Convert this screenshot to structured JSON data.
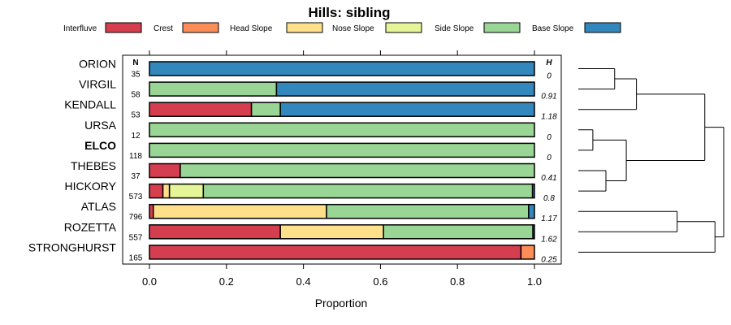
{
  "chart_data": {
    "type": "bar",
    "subtype": "stacked-horizontal-proportion",
    "title": "Hills: sibling",
    "xlabel": "Proportion",
    "xlim": [
      0,
      1
    ],
    "xticks": [
      "0.0",
      "0.2",
      "0.4",
      "0.6",
      "0.8",
      "1.0"
    ],
    "column_headers": {
      "n": "N",
      "h": "H"
    },
    "legend": [
      {
        "name": "Interfluve",
        "color": "#d53e4f"
      },
      {
        "name": "Crest",
        "color": "#fc8d59"
      },
      {
        "name": "Head Slope",
        "color": "#fee08b"
      },
      {
        "name": "Nose Slope",
        "color": "#e6f598"
      },
      {
        "name": "Side Slope",
        "color": "#99d594"
      },
      {
        "name": "Base Slope",
        "color": "#3288bd"
      }
    ],
    "rows": [
      {
        "name": "ORION",
        "bold": false,
        "n": "35",
        "h": "0",
        "values": [
          0,
          0,
          0,
          0,
          0,
          1.0
        ]
      },
      {
        "name": "VIRGIL",
        "bold": false,
        "n": "58",
        "h": "0.91",
        "values": [
          0,
          0,
          0,
          0,
          0.33,
          0.67
        ]
      },
      {
        "name": "KENDALL",
        "bold": false,
        "n": "53",
        "h": "1.18",
        "values": [
          0.265,
          0,
          0,
          0,
          0.075,
          0.66
        ]
      },
      {
        "name": "URSA",
        "bold": false,
        "n": "12",
        "h": "0",
        "values": [
          0,
          0,
          0,
          0,
          1.0,
          0
        ]
      },
      {
        "name": "ELCO",
        "bold": true,
        "n": "118",
        "h": "0",
        "values": [
          0,
          0,
          0,
          0,
          1.0,
          0
        ]
      },
      {
        "name": "THEBES",
        "bold": false,
        "n": "37",
        "h": "0.41",
        "values": [
          0.08,
          0,
          0,
          0,
          0.92,
          0
        ]
      },
      {
        "name": "HICKORY",
        "bold": false,
        "n": "573",
        "h": "0.8",
        "values": [
          0.035,
          0,
          0.017,
          0.088,
          0.855,
          0.005
        ]
      },
      {
        "name": "ATLAS",
        "bold": false,
        "n": "796",
        "h": "1.17",
        "values": [
          0.01,
          0,
          0.45,
          0,
          0.525,
          0.015
        ]
      },
      {
        "name": "ROZETTA",
        "bold": false,
        "n": "557",
        "h": "1.62",
        "values": [
          0.34,
          0,
          0.268,
          0,
          0.388,
          0.004
        ]
      },
      {
        "name": "STRONGHURST",
        "bold": false,
        "n": "165",
        "h": "0.25",
        "values": [
          0.965,
          0.035,
          0,
          0,
          0,
          0
        ]
      }
    ],
    "dendrogram": {
      "leaves": [
        "ORION",
        "VIRGIL",
        "KENDALL",
        "URSA",
        "ELCO",
        "THEBES",
        "HICKORY",
        "ATLAS",
        "ROZETTA",
        "STRONGHURST"
      ],
      "merges": [
        {
          "a": "URSA",
          "b": "ELCO",
          "height": 0.1
        },
        {
          "a": "ORION",
          "b": "VIRGIL",
          "height": 0.25
        },
        {
          "a": "THEBES",
          "b": "HICKORY",
          "height": 0.19
        },
        {
          "a": "URSA+ELCO",
          "b": "THEBES+HICKORY",
          "height": 0.33
        },
        {
          "a": "ORION+VIRGIL",
          "b": "KENDALL",
          "height": 0.4
        },
        {
          "a": "ATLAS",
          "b": "ROZETTA",
          "height": 0.68
        },
        {
          "a": "ORION+VIRGIL+KENDALL",
          "b": "URSA+ELCO+THEBES+HICKORY",
          "height": 0.87
        },
        {
          "a": "ATLAS+ROZETTA",
          "b": "STRONGHURST",
          "height": 0.94
        },
        {
          "a": "upper",
          "b": "lower",
          "height": 1.0
        }
      ]
    }
  }
}
